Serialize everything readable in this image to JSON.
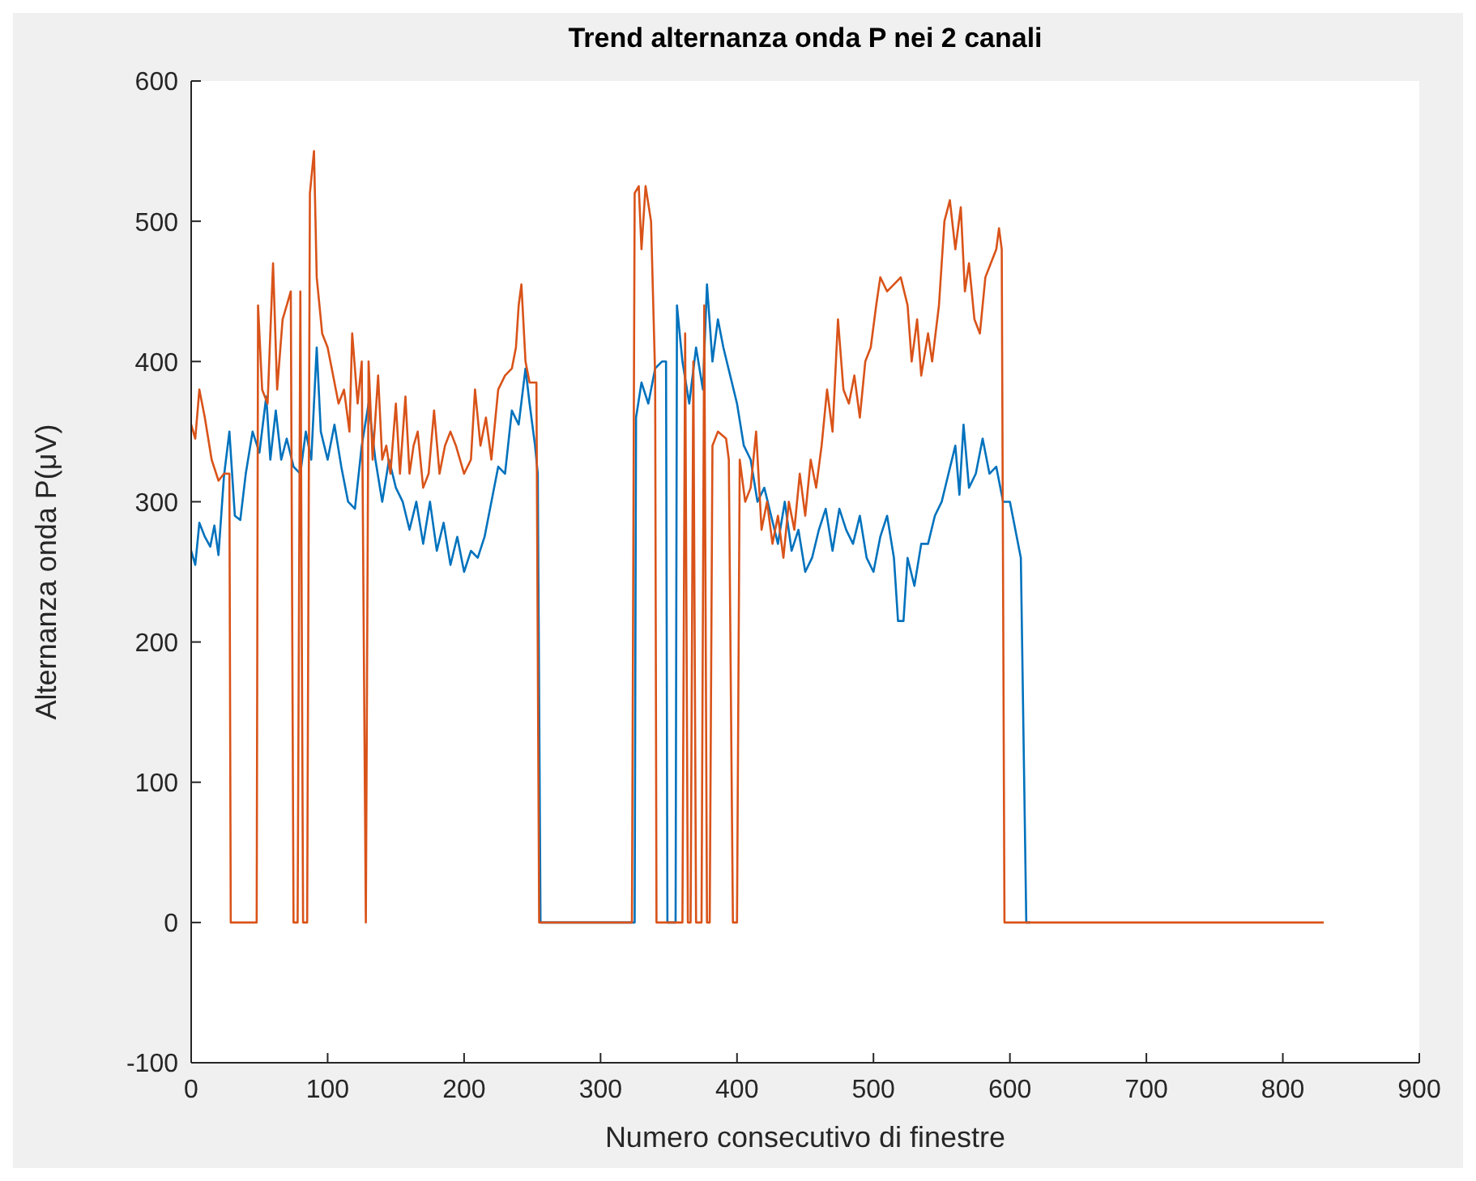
{
  "chart_data": {
    "type": "line",
    "title": "Trend alternanza onda P nei 2 canali",
    "xlabel": "Numero consecutivo di finestre",
    "ylabel": "Alternanza onda P(μV)",
    "xlim": [
      0,
      900
    ],
    "xticks": [
      0,
      100,
      200,
      300,
      400,
      500,
      600,
      700,
      800,
      900
    ],
    "ylim": [
      -100,
      600
    ],
    "yticks": [
      -100,
      0,
      100,
      200,
      300,
      400,
      500,
      600
    ],
    "grid": false,
    "series": [
      {
        "color": "#0072bd",
        "x": [
          0,
          3,
          6,
          10,
          14,
          17,
          20,
          24,
          28,
          32,
          36,
          40,
          45,
          50,
          55,
          58,
          62,
          66,
          70,
          75,
          80,
          84,
          88,
          92,
          95,
          100,
          105,
          110,
          115,
          120,
          125,
          130,
          135,
          140,
          145,
          150,
          155,
          160,
          165,
          170,
          175,
          180,
          185,
          190,
          195,
          200,
          205,
          210,
          215,
          220,
          225,
          230,
          235,
          240,
          245,
          248,
          252,
          254,
          256,
          325,
          326,
          330,
          335,
          340,
          345,
          348,
          349,
          355,
          356,
          360,
          365,
          370,
          375,
          378,
          382,
          386,
          390,
          395,
          400,
          405,
          410,
          415,
          420,
          425,
          430,
          435,
          440,
          445,
          450,
          455,
          460,
          465,
          470,
          475,
          480,
          485,
          490,
          495,
          500,
          505,
          510,
          515,
          518,
          522,
          525,
          530,
          535,
          540,
          545,
          550,
          555,
          560,
          563,
          566,
          570,
          575,
          580,
          585,
          590,
          595,
          600,
          608,
          612,
          615
        ],
        "values": [
          265,
          255,
          285,
          275,
          268,
          283,
          262,
          318,
          350,
          290,
          287,
          320,
          350,
          335,
          375,
          330,
          365,
          330,
          345,
          325,
          320,
          350,
          330,
          410,
          350,
          330,
          355,
          325,
          300,
          295,
          340,
          370,
          330,
          300,
          330,
          310,
          300,
          280,
          300,
          270,
          300,
          265,
          285,
          255,
          275,
          250,
          265,
          260,
          275,
          300,
          325,
          320,
          365,
          355,
          395,
          370,
          340,
          320,
          0,
          0,
          360,
          385,
          370,
          395,
          400,
          400,
          0,
          0,
          440,
          400,
          370,
          410,
          380,
          455,
          400,
          430,
          410,
          390,
          370,
          340,
          330,
          300,
          310,
          290,
          270,
          300,
          265,
          280,
          250,
          260,
          280,
          295,
          265,
          295,
          280,
          270,
          290,
          260,
          250,
          275,
          290,
          260,
          215,
          215,
          260,
          240,
          270,
          270,
          290,
          300,
          320,
          340,
          305,
          355,
          310,
          320,
          345,
          320,
          325,
          300,
          300,
          260,
          0,
          0
        ]
      },
      {
        "color": "#d95319",
        "x": [
          0,
          3,
          6,
          10,
          15,
          20,
          24,
          28,
          29,
          46,
          48,
          49,
          52,
          56,
          60,
          63,
          67,
          70,
          73,
          75,
          78,
          80,
          82,
          85,
          87,
          90,
          92,
          96,
          100,
          104,
          108,
          112,
          116,
          118,
          122,
          125,
          128,
          130,
          133,
          137,
          140,
          143,
          146,
          150,
          153,
          157,
          160,
          163,
          166,
          170,
          174,
          178,
          182,
          186,
          190,
          194,
          200,
          205,
          208,
          212,
          216,
          220,
          225,
          230,
          235,
          238,
          240,
          242,
          245,
          248,
          253,
          255,
          323,
          325,
          328,
          330,
          333,
          337,
          340,
          341,
          360,
          362,
          364,
          366,
          368,
          370,
          374,
          376,
          378,
          380,
          382,
          386,
          392,
          394,
          397,
          400,
          402,
          406,
          410,
          414,
          418,
          422,
          426,
          430,
          434,
          438,
          442,
          446,
          450,
          454,
          458,
          462,
          466,
          470,
          474,
          478,
          482,
          486,
          490,
          494,
          498,
          502,
          505,
          510,
          515,
          520,
          525,
          528,
          532,
          535,
          540,
          543,
          548,
          552,
          556,
          560,
          564,
          567,
          570,
          574,
          578,
          582,
          586,
          590,
          592,
          594,
          596,
          830
        ],
        "values": [
          355,
          345,
          380,
          360,
          330,
          315,
          320,
          320,
          0,
          0,
          0,
          440,
          380,
          370,
          470,
          380,
          430,
          440,
          450,
          0,
          0,
          450,
          0,
          0,
          520,
          550,
          460,
          420,
          410,
          390,
          370,
          380,
          350,
          420,
          370,
          400,
          0,
          400,
          330,
          390,
          330,
          340,
          320,
          370,
          320,
          375,
          320,
          340,
          350,
          310,
          320,
          365,
          320,
          340,
          350,
          340,
          320,
          330,
          380,
          340,
          360,
          330,
          380,
          390,
          395,
          410,
          440,
          455,
          400,
          385,
          385,
          0,
          0,
          520,
          525,
          480,
          525,
          500,
          390,
          0,
          0,
          420,
          0,
          0,
          400,
          0,
          0,
          440,
          0,
          0,
          340,
          350,
          345,
          330,
          0,
          0,
          330,
          300,
          310,
          350,
          280,
          300,
          270,
          290,
          260,
          300,
          280,
          320,
          290,
          330,
          310,
          340,
          380,
          350,
          430,
          380,
          370,
          390,
          360,
          400,
          410,
          440,
          460,
          450,
          455,
          460,
          440,
          400,
          430,
          390,
          420,
          400,
          440,
          500,
          515,
          480,
          510,
          450,
          470,
          430,
          420,
          460,
          470,
          480,
          495,
          480,
          0,
          0
        ]
      }
    ]
  }
}
